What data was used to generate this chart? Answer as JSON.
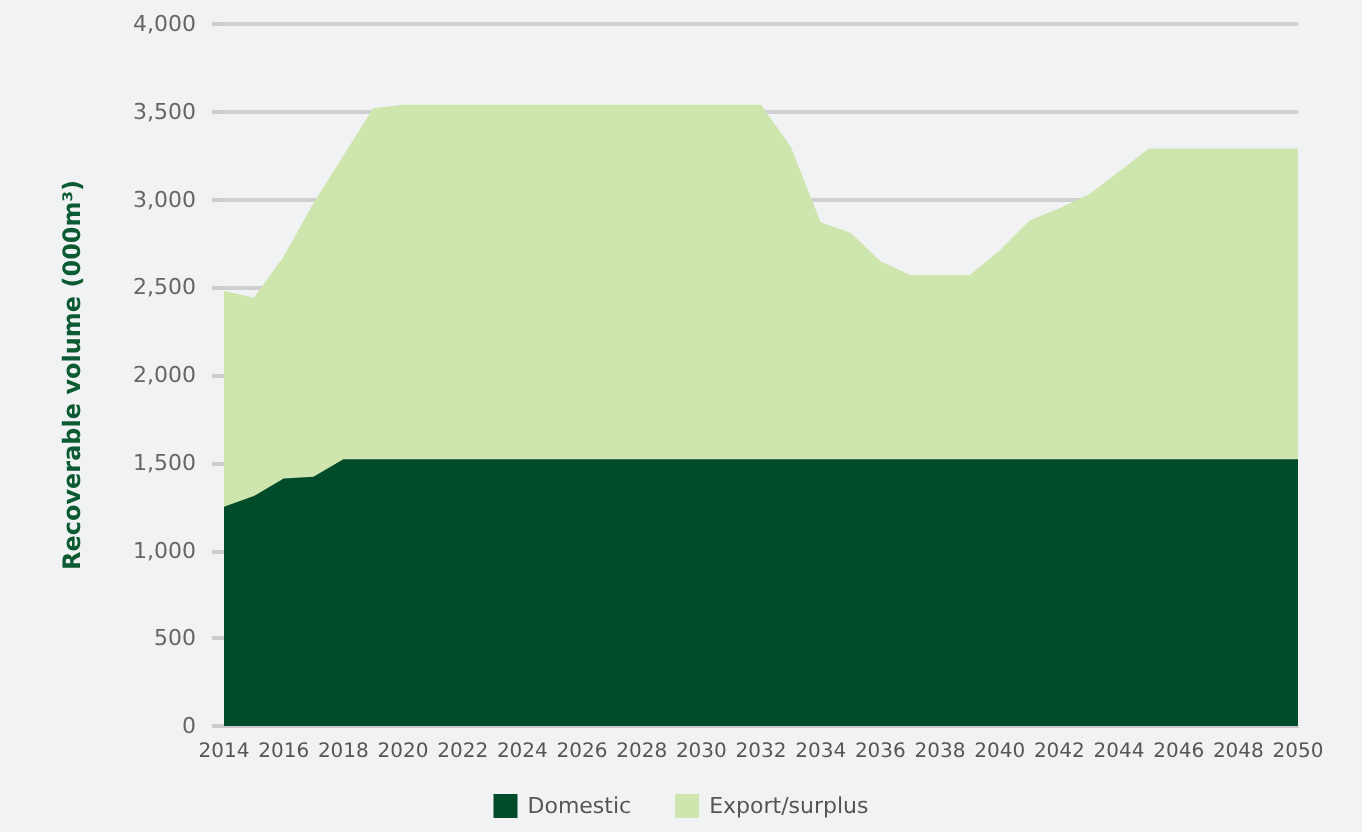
{
  "chart_data": {
    "type": "area",
    "stacked": true,
    "x": [
      2014,
      2015,
      2016,
      2017,
      2018,
      2019,
      2020,
      2021,
      2022,
      2023,
      2024,
      2025,
      2026,
      2027,
      2028,
      2029,
      2030,
      2031,
      2032,
      2033,
      2034,
      2035,
      2036,
      2037,
      2038,
      2039,
      2040,
      2041,
      2042,
      2043,
      2044,
      2045,
      2046,
      2047,
      2048,
      2049,
      2050
    ],
    "ylabel": "Recoverable volume (000m³)",
    "series": [
      {
        "name": "Domestic",
        "color": "#004b2a",
        "values": [
          1250,
          1310,
          1410,
          1420,
          1520,
          1520,
          1520,
          1520,
          1520,
          1520,
          1520,
          1520,
          1520,
          1520,
          1520,
          1520,
          1520,
          1520,
          1520,
          1520,
          1520,
          1520,
          1520,
          1520,
          1520,
          1520,
          1520,
          1520,
          1520,
          1520,
          1520,
          1520,
          1520,
          1520,
          1520,
          1520,
          1520
        ]
      },
      {
        "name": "Export/surplus",
        "color": "#cfe5ae",
        "values": [
          1230,
          1130,
          1265,
          1560,
          1730,
          2000,
          2020,
          2020,
          2020,
          2020,
          2020,
          2020,
          2020,
          2020,
          2020,
          2020,
          2020,
          2020,
          2020,
          1780,
          1350,
          1290,
          1130,
          1050,
          1050,
          1050,
          1190,
          1360,
          1430,
          1510,
          1640,
          1770,
          1770,
          1770,
          1770,
          1770,
          1770
        ]
      }
    ],
    "xlim": [
      2014,
      2050
    ],
    "xticks": [
      2014,
      2016,
      2018,
      2020,
      2022,
      2024,
      2026,
      2028,
      2030,
      2032,
      2034,
      2036,
      2038,
      2040,
      2042,
      2044,
      2046,
      2048,
      2050
    ],
    "ylim": [
      0,
      4000
    ],
    "yticks": [
      0,
      500,
      {
        "value": 1000,
        "label": "1,000"
      },
      {
        "value": 1500,
        "label": "1,500"
      },
      {
        "value": 2000,
        "label": "2,000"
      },
      {
        "value": 2500,
        "label": "2,500"
      },
      {
        "value": 3000,
        "label": "3,000"
      },
      {
        "value": 3500,
        "label": "3,500"
      },
      {
        "value": 4000,
        "label": "4,000"
      }
    ],
    "grid": "y",
    "legend": "bottom"
  }
}
